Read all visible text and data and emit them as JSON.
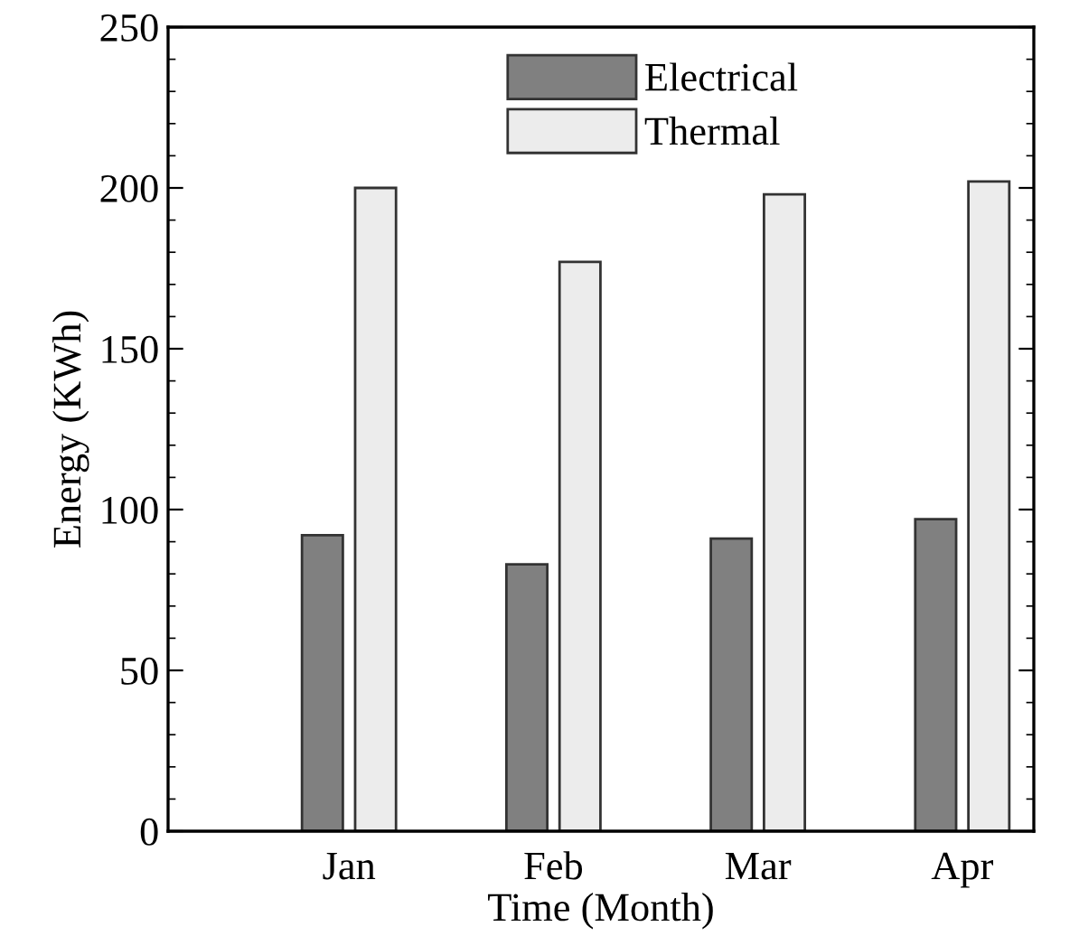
{
  "chart_data": {
    "type": "bar",
    "xlabel": "Time (Month)",
    "ylabel": "Energy (KWh)",
    "categories": [
      "Jan",
      "Feb",
      "Mar",
      "Apr"
    ],
    "series": [
      {
        "name": "Electrical",
        "color": "#808080",
        "values": [
          92,
          83,
          91,
          97
        ]
      },
      {
        "name": "Thermal",
        "color": "#ececec",
        "values": [
          200,
          177,
          198,
          202
        ]
      }
    ],
    "ylim": [
      0,
      250
    ],
    "yticks": [
      0,
      50,
      100,
      150,
      200,
      250
    ],
    "grid": false,
    "legend": "top"
  }
}
